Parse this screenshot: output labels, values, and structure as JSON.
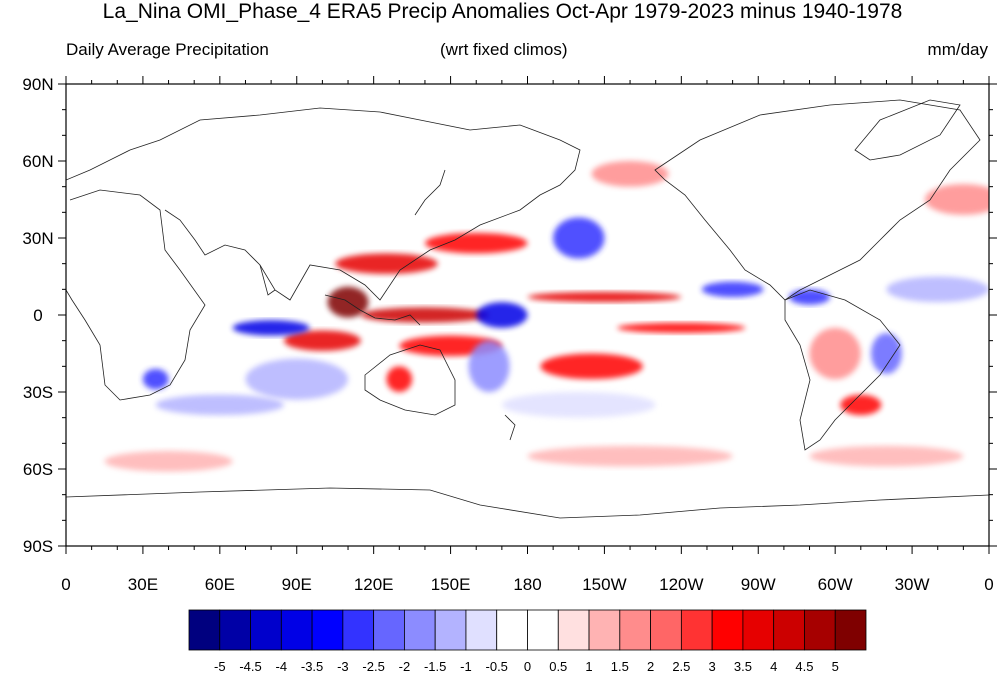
{
  "titles": {
    "main": "La_Nina OMI_Phase_4 ERA5 Precip Anomalies Oct-Apr 1979-2023 minus 1940-1978",
    "left": "Daily Average Precipitation",
    "center": "(wrt fixed climos)",
    "right": "mm/day"
  },
  "lat_labels": [
    "90N",
    "60N",
    "30N",
    "0",
    "30S",
    "60S",
    "90S"
  ],
  "lon_labels": [
    "0",
    "30E",
    "60E",
    "90E",
    "120E",
    "150E",
    "180",
    "150W",
    "120W",
    "90W",
    "60W",
    "30W",
    "0"
  ],
  "colorbar": {
    "colors": [
      "#00007f",
      "#0000a6",
      "#0000cc",
      "#0000e6",
      "#0000ff",
      "#3333ff",
      "#6666ff",
      "#8c8cff",
      "#b3b3ff",
      "#e0e0ff",
      "#ffffff",
      "#ffffff",
      "#ffe0e0",
      "#ffb3b3",
      "#ff8c8c",
      "#ff6666",
      "#ff3333",
      "#ff0000",
      "#e60000",
      "#cc0000",
      "#a60000",
      "#7f0000"
    ],
    "labels": [
      "-5",
      "-4.5",
      "-4",
      "-3.5",
      "-3",
      "-2.5",
      "-2",
      "-1.5",
      "-1",
      "-0.5",
      "0",
      "0.5",
      "1",
      "1.5",
      "2",
      "2.5",
      "3",
      "3.5",
      "4",
      "4.5",
      "5"
    ]
  },
  "anomaly_blobs": [
    {
      "lon": 110,
      "lat": 5,
      "rx": 8,
      "ry": 6,
      "value": 5
    },
    {
      "lon": 125,
      "lat": 20,
      "rx": 20,
      "ry": 4,
      "value": 3.5
    },
    {
      "lon": 160,
      "lat": 28,
      "rx": 20,
      "ry": 4,
      "value": 3
    },
    {
      "lon": 150,
      "lat": -12,
      "rx": 20,
      "ry": 4,
      "value": 3
    },
    {
      "lon": 100,
      "lat": -10,
      "rx": 15,
      "ry": 4,
      "value": 3.5
    },
    {
      "lon": 210,
      "lat": 7,
      "rx": 30,
      "ry": 2,
      "value": 3.5
    },
    {
      "lon": 240,
      "lat": -5,
      "rx": 25,
      "ry": 2,
      "value": 3
    },
    {
      "lon": 205,
      "lat": -20,
      "rx": 20,
      "ry": 5,
      "value": 3
    },
    {
      "lon": 140,
      "lat": 0,
      "rx": 25,
      "ry": 3,
      "value": 4
    },
    {
      "lon": 130,
      "lat": -25,
      "rx": 5,
      "ry": 5,
      "value": 3
    },
    {
      "lon": 310,
      "lat": -35,
      "rx": 8,
      "ry": 4,
      "value": 3
    },
    {
      "lon": 300,
      "lat": -15,
      "rx": 10,
      "ry": 10,
      "value": 1.5
    },
    {
      "lon": 350,
      "lat": 45,
      "rx": 15,
      "ry": 6,
      "value": 1.5
    },
    {
      "lon": 220,
      "lat": 55,
      "rx": 15,
      "ry": 5,
      "value": 1.5
    },
    {
      "lon": 80,
      "lat": -5,
      "rx": 15,
      "ry": 3,
      "value": -4
    },
    {
      "lon": 170,
      "lat": 0,
      "rx": 10,
      "ry": 5,
      "value": -4
    },
    {
      "lon": 200,
      "lat": 30,
      "rx": 10,
      "ry": 8,
      "value": -3
    },
    {
      "lon": 260,
      "lat": 10,
      "rx": 12,
      "ry": 3,
      "value": -3
    },
    {
      "lon": 290,
      "lat": 7,
      "rx": 8,
      "ry": 3,
      "value": -3
    },
    {
      "lon": 320,
      "lat": -15,
      "rx": 6,
      "ry": 8,
      "value": -2.5
    },
    {
      "lon": 90,
      "lat": -25,
      "rx": 20,
      "ry": 8,
      "value": -1.5
    },
    {
      "lon": 35,
      "lat": -25,
      "rx": 5,
      "ry": 4,
      "value": -3
    },
    {
      "lon": 165,
      "lat": -20,
      "rx": 8,
      "ry": 10,
      "value": -2
    },
    {
      "lon": 340,
      "lat": 10,
      "rx": 20,
      "ry": 5,
      "value": -1.5
    },
    {
      "lon": 200,
      "lat": -35,
      "rx": 30,
      "ry": 5,
      "value": -1
    },
    {
      "lon": 60,
      "lat": -35,
      "rx": 25,
      "ry": 4,
      "value": -1.5
    },
    {
      "lon": 40,
      "lat": -57,
      "rx": 25,
      "ry": 4,
      "value": 1
    },
    {
      "lon": 220,
      "lat": -55,
      "rx": 40,
      "ry": 4,
      "value": 1
    },
    {
      "lon": 320,
      "lat": -55,
      "rx": 30,
      "ry": 4,
      "value": 1
    }
  ]
}
